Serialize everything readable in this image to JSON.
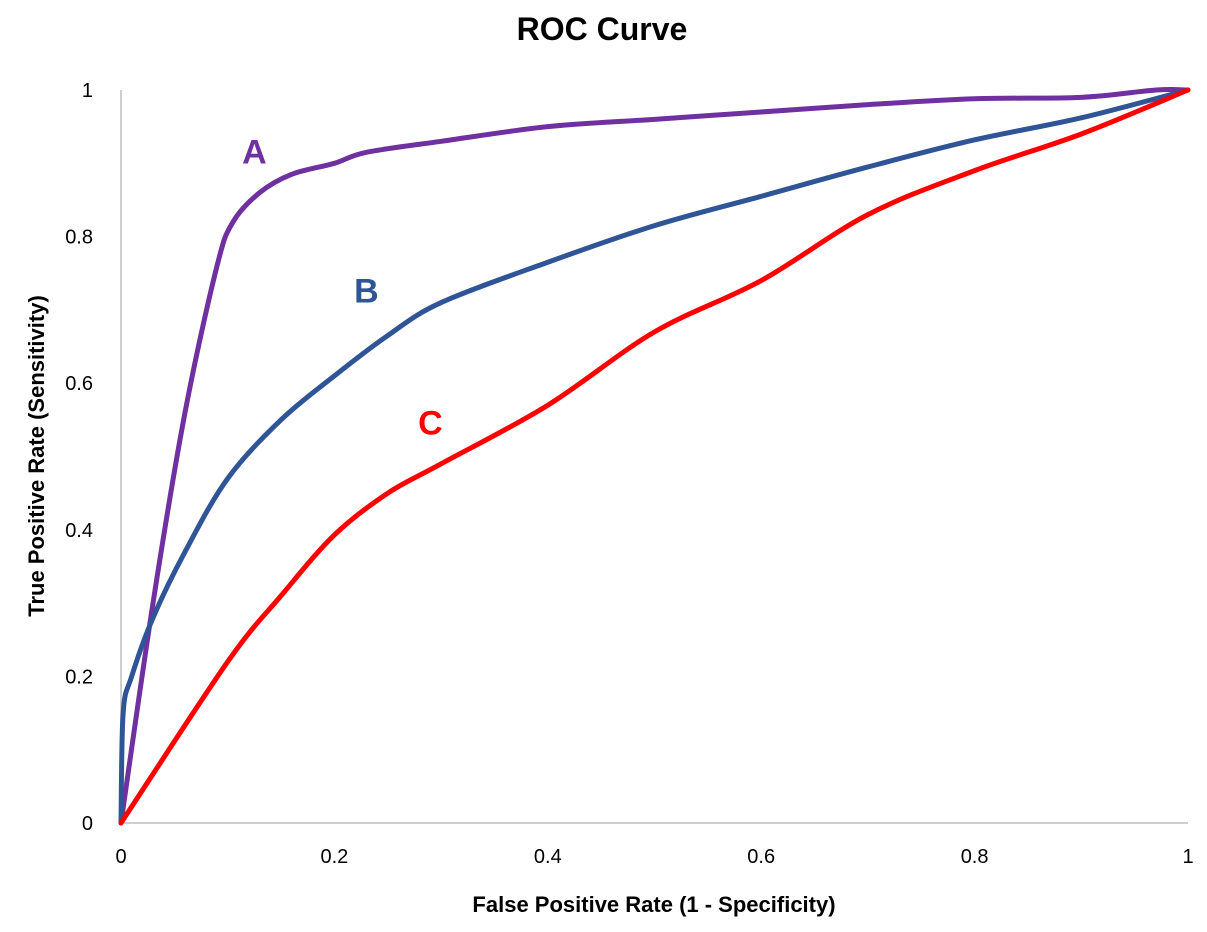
{
  "chart_data": {
    "type": "line",
    "title": "ROC Curve",
    "xlabel": "False Positive Rate (1 - Specificity)",
    "ylabel": "True Positive Rate (Sensitivity)",
    "xlim": [
      0,
      1
    ],
    "ylim": [
      0,
      1
    ],
    "xticks": [
      "0",
      "0.2",
      "0.4",
      "0.6",
      "0.8",
      "1"
    ],
    "yticks": [
      "0",
      "0.2",
      "0.4",
      "0.6",
      "0.8",
      "1"
    ],
    "grid": false,
    "legend": "none",
    "series": [
      {
        "name": "A",
        "color": "#7030A0",
        "points": [
          [
            0,
            0
          ],
          [
            0.03,
            0.3
          ],
          [
            0.06,
            0.56
          ],
          [
            0.09,
            0.76
          ],
          [
            0.105,
            0.82
          ],
          [
            0.13,
            0.86
          ],
          [
            0.16,
            0.885
          ],
          [
            0.2,
            0.9
          ],
          [
            0.23,
            0.915
          ],
          [
            0.3,
            0.93
          ],
          [
            0.4,
            0.95
          ],
          [
            0.5,
            0.96
          ],
          [
            0.6,
            0.97
          ],
          [
            0.7,
            0.98
          ],
          [
            0.8,
            0.988
          ],
          [
            0.9,
            0.99
          ],
          [
            0.97,
            1
          ],
          [
            1,
            1
          ]
        ],
        "label_at": [
          0.125,
          0.9
        ]
      },
      {
        "name": "B",
        "color": "#2F5597",
        "points": [
          [
            0,
            0
          ],
          [
            0.002,
            0.15
          ],
          [
            0.01,
            0.2
          ],
          [
            0.03,
            0.28
          ],
          [
            0.06,
            0.37
          ],
          [
            0.1,
            0.47
          ],
          [
            0.15,
            0.55
          ],
          [
            0.2,
            0.61
          ],
          [
            0.25,
            0.665
          ],
          [
            0.3,
            0.71
          ],
          [
            0.4,
            0.765
          ],
          [
            0.5,
            0.815
          ],
          [
            0.6,
            0.855
          ],
          [
            0.7,
            0.895
          ],
          [
            0.8,
            0.932
          ],
          [
            0.9,
            0.962
          ],
          [
            1,
            1
          ]
        ],
        "label_at": [
          0.23,
          0.71
        ]
      },
      {
        "name": "C",
        "color": "#FF0000",
        "points": [
          [
            0,
            0
          ],
          [
            0.1,
            0.22
          ],
          [
            0.15,
            0.31
          ],
          [
            0.2,
            0.393
          ],
          [
            0.25,
            0.45
          ],
          [
            0.3,
            0.49
          ],
          [
            0.4,
            0.57
          ],
          [
            0.5,
            0.67
          ],
          [
            0.6,
            0.74
          ],
          [
            0.7,
            0.83
          ],
          [
            0.8,
            0.89
          ],
          [
            0.9,
            0.94
          ],
          [
            1,
            1
          ]
        ],
        "label_at": [
          0.29,
          0.53
        ]
      }
    ]
  }
}
